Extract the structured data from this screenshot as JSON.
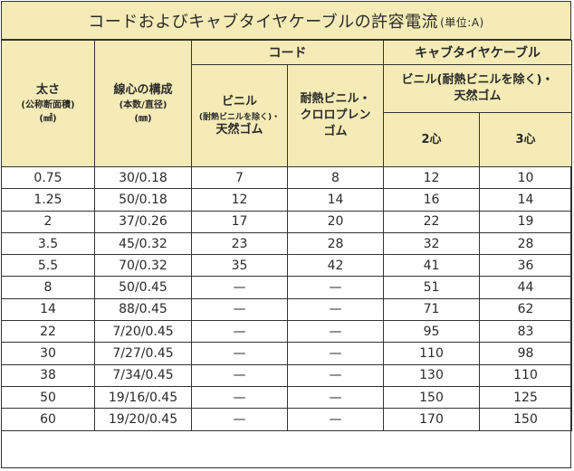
{
  "title": {
    "main": "コードおよびキャブタイヤケーブルの許容電流",
    "unit": "(単位:A)"
  },
  "headers": {
    "size": {
      "line1": "太さ",
      "line2": "(公称断面積)",
      "line3": "(㎟)"
    },
    "strand": {
      "line1": "線心の構成",
      "line2": "(本数/直径)",
      "line3": "(㎜)"
    },
    "cord_group": "コード",
    "cord_vinyl": {
      "line1": "ビニル",
      "line2": "(耐熱ビニルを除く)・",
      "line3": "天然ゴム"
    },
    "cord_heat": {
      "line1": "耐熱ビニル・",
      "line2": "クロロプレン",
      "line3": "ゴム"
    },
    "cabtire_group": "キャブタイヤケーブル",
    "cabtire_sub": {
      "line1": "ビニル(耐熱ビニルを除く)・",
      "line2": "天然ゴム"
    },
    "two_core": "2心",
    "three_core": "3心"
  },
  "rows": [
    {
      "size": "0.75",
      "strand": "30/0.18",
      "vinyl": "7",
      "heat": "8",
      "c2": "12",
      "c3": "10"
    },
    {
      "size": "1.25",
      "strand": "50/0.18",
      "vinyl": "12",
      "heat": "14",
      "c2": "16",
      "c3": "14"
    },
    {
      "size": "2",
      "strand": "37/0.26",
      "vinyl": "17",
      "heat": "20",
      "c2": "22",
      "c3": "19"
    },
    {
      "size": "3.5",
      "strand": "45/0.32",
      "vinyl": "23",
      "heat": "28",
      "c2": "32",
      "c3": "28"
    },
    {
      "size": "5.5",
      "strand": "70/0.32",
      "vinyl": "35",
      "heat": "42",
      "c2": "41",
      "c3": "36"
    },
    {
      "size": "8",
      "strand": "50/0.45",
      "vinyl": "—",
      "heat": "—",
      "c2": "51",
      "c3": "44"
    },
    {
      "size": "14",
      "strand": "88/0.45",
      "vinyl": "—",
      "heat": "—",
      "c2": "71",
      "c3": "62"
    },
    {
      "size": "22",
      "strand": "7/20/0.45",
      "vinyl": "—",
      "heat": "—",
      "c2": "95",
      "c3": "83"
    },
    {
      "size": "30",
      "strand": "7/27/0.45",
      "vinyl": "—",
      "heat": "—",
      "c2": "110",
      "c3": "98"
    },
    {
      "size": "38",
      "strand": "7/34/0.45",
      "vinyl": "—",
      "heat": "—",
      "c2": "130",
      "c3": "110"
    },
    {
      "size": "50",
      "strand": "19/16/0.45",
      "vinyl": "—",
      "heat": "—",
      "c2": "150",
      "c3": "125"
    },
    {
      "size": "60",
      "strand": "19/20/0.45",
      "vinyl": "—",
      "heat": "—",
      "c2": "170",
      "c3": "150"
    }
  ]
}
